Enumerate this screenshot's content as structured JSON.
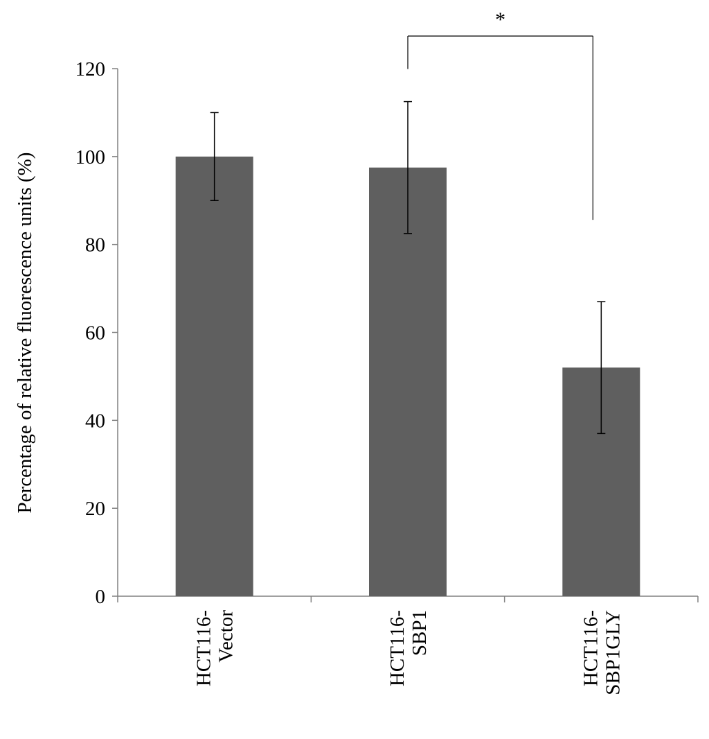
{
  "chart_data": {
    "type": "bar",
    "title": "",
    "xlabel": "",
    "ylabel": "Percentage of relative fluorescence units (%)",
    "ylim": [
      0,
      120
    ],
    "yticks": [
      "0",
      "20",
      "40",
      "60",
      "80",
      "100",
      "120"
    ],
    "categories": [
      [
        "HCT116-",
        "Vector"
      ],
      [
        "HCT116-",
        "SBP1"
      ],
      [
        "HCT116-",
        "SBP1GLY"
      ]
    ],
    "values": [
      100,
      97.5,
      52
    ],
    "error_bars": [
      10,
      15,
      15
    ],
    "significance": {
      "label": "*",
      "between": [
        1,
        2
      ]
    },
    "grid": false,
    "legend": "none",
    "colors": {
      "bar": "#5f5f5f",
      "axis": "#808080",
      "error": "#000000"
    }
  }
}
